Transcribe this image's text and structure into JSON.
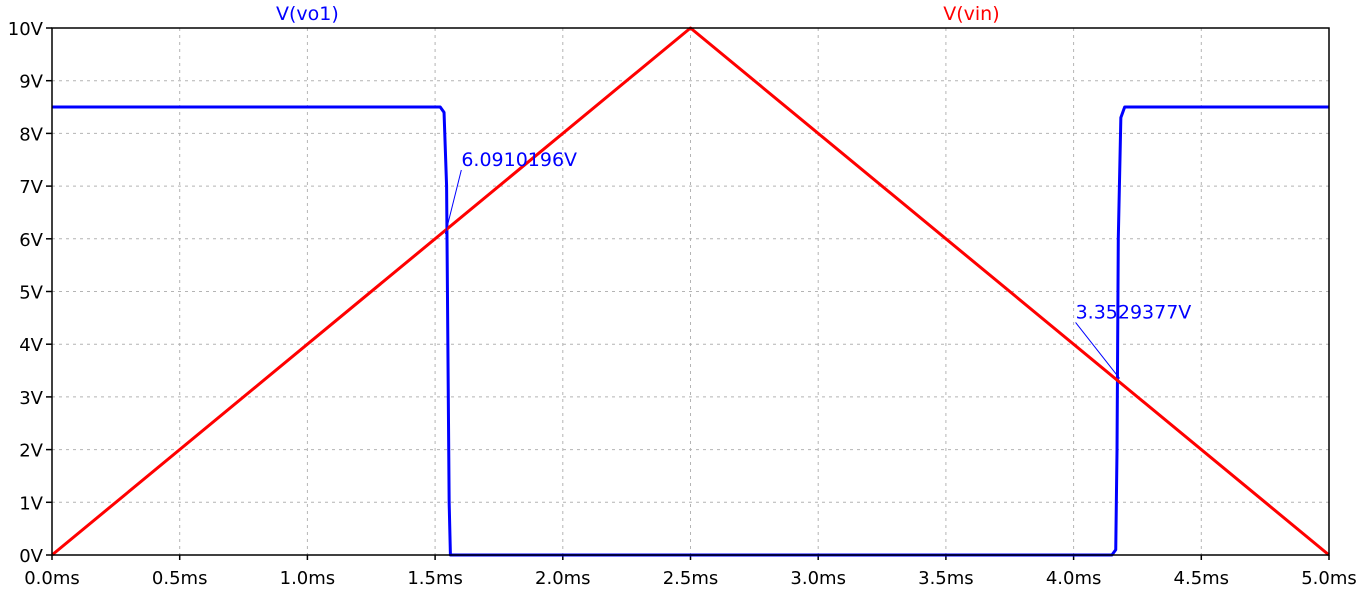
{
  "chart_data": {
    "type": "line",
    "title": "",
    "xlabel": "",
    "ylabel": "",
    "xlim": [
      0.0,
      5.0
    ],
    "ylim": [
      0,
      10
    ],
    "grid": true,
    "x_ticks": [
      {
        "value": 0.0,
        "label": "0.0ms"
      },
      {
        "value": 0.5,
        "label": "0.5ms"
      },
      {
        "value": 1.0,
        "label": "1.0ms"
      },
      {
        "value": 1.5,
        "label": "1.5ms"
      },
      {
        "value": 2.0,
        "label": "2.0ms"
      },
      {
        "value": 2.5,
        "label": "2.5ms"
      },
      {
        "value": 3.0,
        "label": "3.0ms"
      },
      {
        "value": 3.5,
        "label": "3.5ms"
      },
      {
        "value": 4.0,
        "label": "4.0ms"
      },
      {
        "value": 4.5,
        "label": "4.5ms"
      },
      {
        "value": 5.0,
        "label": "5.0ms"
      }
    ],
    "y_ticks": [
      {
        "value": 0,
        "label": "0V"
      },
      {
        "value": 1,
        "label": "1V"
      },
      {
        "value": 2,
        "label": "2V"
      },
      {
        "value": 3,
        "label": "3V"
      },
      {
        "value": 4,
        "label": "4V"
      },
      {
        "value": 5,
        "label": "5V"
      },
      {
        "value": 6,
        "label": "6V"
      },
      {
        "value": 7,
        "label": "7V"
      },
      {
        "value": 8,
        "label": "8V"
      },
      {
        "value": 9,
        "label": "9V"
      },
      {
        "value": 10,
        "label": "10V"
      }
    ],
    "series": [
      {
        "name": "V(vo1)",
        "color": "#0000ff",
        "x": [
          0.0,
          1.52,
          1.535,
          1.545,
          1.55,
          1.555,
          1.56,
          4.15,
          4.165,
          4.17,
          4.175,
          4.185,
          4.2,
          5.0
        ],
        "y": [
          8.5,
          8.5,
          8.4,
          7.0,
          4.0,
          1.0,
          0.0,
          0.0,
          0.1,
          2.0,
          6.0,
          8.3,
          8.5,
          8.5
        ]
      },
      {
        "name": "V(vin)",
        "color": "#ff0000",
        "x": [
          0.0,
          2.5,
          5.0
        ],
        "y": [
          0,
          10,
          0
        ]
      }
    ],
    "annotations": [
      {
        "text": "6.0910196V",
        "point_x": 1.54,
        "point_y": 6.09,
        "color": "#0000ff"
      },
      {
        "text": "3.3529377V",
        "point_x": 4.18,
        "point_y": 3.35,
        "color": "#0000ff"
      }
    ]
  }
}
